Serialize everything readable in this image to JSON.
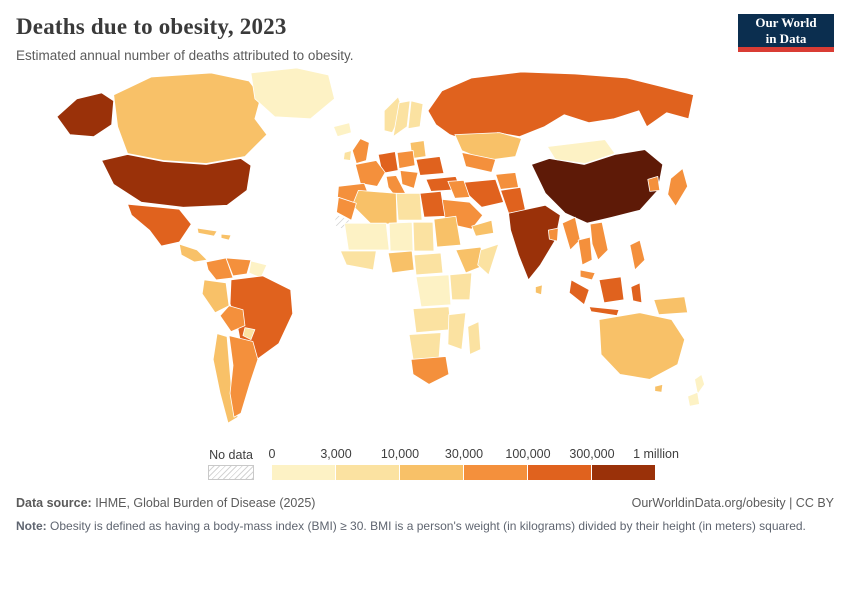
{
  "header": {
    "title": "Deaths due to obesity, 2023",
    "subtitle": "Estimated annual number of deaths attributed to obesity.",
    "logo": {
      "line1": "Our World",
      "line2": "in Data",
      "bg_color": "#0b2e4f",
      "accent_color": "#d93c34"
    }
  },
  "legend": {
    "no_data_label": "No data",
    "tick_labels": [
      "0",
      "3,000",
      "10,000",
      "30,000",
      "100,000",
      "300,000",
      "1 million"
    ]
  },
  "chart_data": {
    "type": "heatmap",
    "subtype": "choropleth-world-map",
    "title": "Deaths due to obesity, 2023",
    "unit": "annual deaths attributed to obesity",
    "legend_position": "bottom",
    "bins": [
      {
        "key": "0-3k",
        "label": "0 – 3,000",
        "color": "#fdf2c5"
      },
      {
        "key": "3k-10k",
        "label": "3,000 – 10,000",
        "color": "#fbe2a1"
      },
      {
        "key": "10k-30k",
        "label": "10,000 – 30,000",
        "color": "#f8c168"
      },
      {
        "key": "30k-100k",
        "label": "30,000 – 100,000",
        "color": "#f4903c"
      },
      {
        "key": "100k-300k",
        "label": "100,000 – 300,000",
        "color": "#e0621e"
      },
      {
        "key": "300k-1m",
        "label": "300,000 – 1 million",
        "color": "#9a3109"
      },
      {
        "key": ">1m",
        "label": "> 1 million",
        "color": "#5e1a07"
      }
    ],
    "no_data": {
      "label": "No data",
      "pattern": "hatched"
    },
    "countries": {
      "united-states": "300k-1m",
      "canada": "10k-30k",
      "greenland": "0-3k",
      "iceland": "0-3k",
      "mexico": "100k-300k",
      "central-america": "10k-30k",
      "cuba": "10k-30k",
      "hispaniola": "10k-30k",
      "colombia": "30k-100k",
      "venezuela": "30k-100k",
      "guyanas": "0-3k",
      "brazil": "100k-300k",
      "peru": "10k-30k",
      "bolivia": "30k-100k",
      "paraguay": "3k-10k",
      "chile": "10k-30k",
      "argentina": "30k-100k",
      "united-kingdom": "30k-100k",
      "ireland": "3k-10k",
      "norway": "3k-10k",
      "sweden": "3k-10k",
      "finland": "3k-10k",
      "baltics-belarus": "10k-30k",
      "germany": "100k-300k",
      "france": "30k-100k",
      "iberia": "30k-100k",
      "italy": "30k-100k",
      "central-europe": "30k-100k",
      "balkans": "30k-100k",
      "ukraine": "100k-300k",
      "turkey": "100k-300k",
      "russia": "100k-300k",
      "kazakhstan": "10k-30k",
      "central-asia": "30k-100k",
      "iran": "100k-300k",
      "iraq-syria": "30k-100k",
      "saudi-arabia": "30k-100k",
      "yemen-oman": "10k-30k",
      "egypt": "100k-300k",
      "libya": "3k-10k",
      "algeria": "10k-30k",
      "morocco": "30k-100k",
      "western-sahara": "no-data",
      "mali-mauritania": "0-3k",
      "niger": "0-3k",
      "chad": "3k-10k",
      "sudan": "10k-30k",
      "west-africa": "3k-10k",
      "nigeria": "10k-30k",
      "cameroon-car": "3k-10k",
      "ethiopia": "10k-30k",
      "somalia": "3k-10k",
      "kenya-tanzania": "3k-10k",
      "drc": "0-3k",
      "angola-zambia": "3k-10k",
      "mozambique-zimbabwe": "3k-10k",
      "namibia-botswana": "3k-10k",
      "south-africa": "30k-100k",
      "madagascar": "3k-10k",
      "afghanistan": "30k-100k",
      "pakistan": "100k-300k",
      "india": "300k-1m",
      "bangladesh": "30k-100k",
      "sri-lanka": "10k-30k",
      "china": ">1m",
      "mongolia": "0-3k",
      "south-korea": "30k-100k",
      "japan": "30k-100k",
      "myanmar": "30k-100k",
      "thailand": "30k-100k",
      "vietnam": "30k-100k",
      "malaysia": "30k-100k",
      "indonesia": "100k-300k",
      "papua-new-guinea": "10k-30k",
      "philippines": "30k-100k",
      "australia": "10k-30k",
      "new-zealand": "0-3k"
    }
  },
  "footer": {
    "source_label": "Data source:",
    "source_value": " IHME, Global Burden of Disease (2025)",
    "link": "OurWorldinData.org/obesity | CC BY",
    "note_label": "Note:",
    "note_text": " Obesity is defined as having a body-mass index (BMI) ≥ 30. BMI is a person's weight (in kilograms) divided by their height (in meters) squared."
  }
}
